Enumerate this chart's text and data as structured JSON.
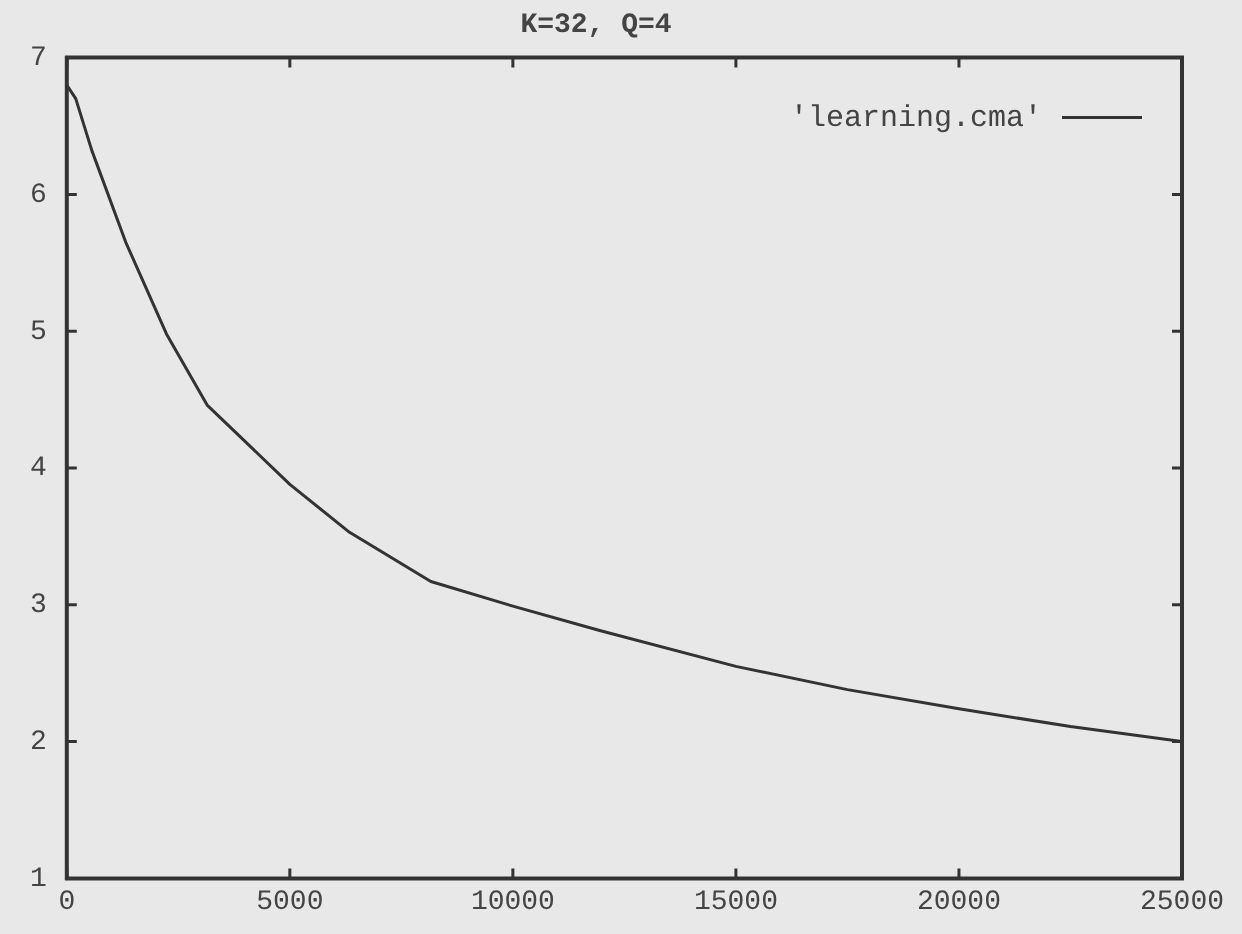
{
  "chart_data": {
    "type": "line",
    "title": "K=32, Q=4",
    "series": [
      {
        "name": "'learning.cma'",
        "color": "#333333",
        "x": [
          0,
          200,
          562,
          1322,
          2234,
          3146,
          5000,
          6338,
          8161,
          10000,
          11966,
          15000,
          17500,
          20000,
          22500,
          25000
        ],
        "values": [
          6.8,
          6.7,
          6.32,
          5.65,
          4.98,
          4.46,
          3.88,
          3.53,
          3.17,
          2.99,
          2.81,
          2.55,
          2.38,
          2.24,
          2.11,
          2.0
        ]
      }
    ],
    "xlim": [
      0,
      25000
    ],
    "xticks": [
      0,
      5000,
      10000,
      15000,
      20000,
      25000
    ],
    "ylim": [
      1,
      7
    ],
    "yticks": [
      1,
      2,
      3,
      4,
      5,
      6,
      7
    ],
    "grid": false,
    "legend": "top right",
    "marker": "none",
    "line_style": "solid"
  }
}
